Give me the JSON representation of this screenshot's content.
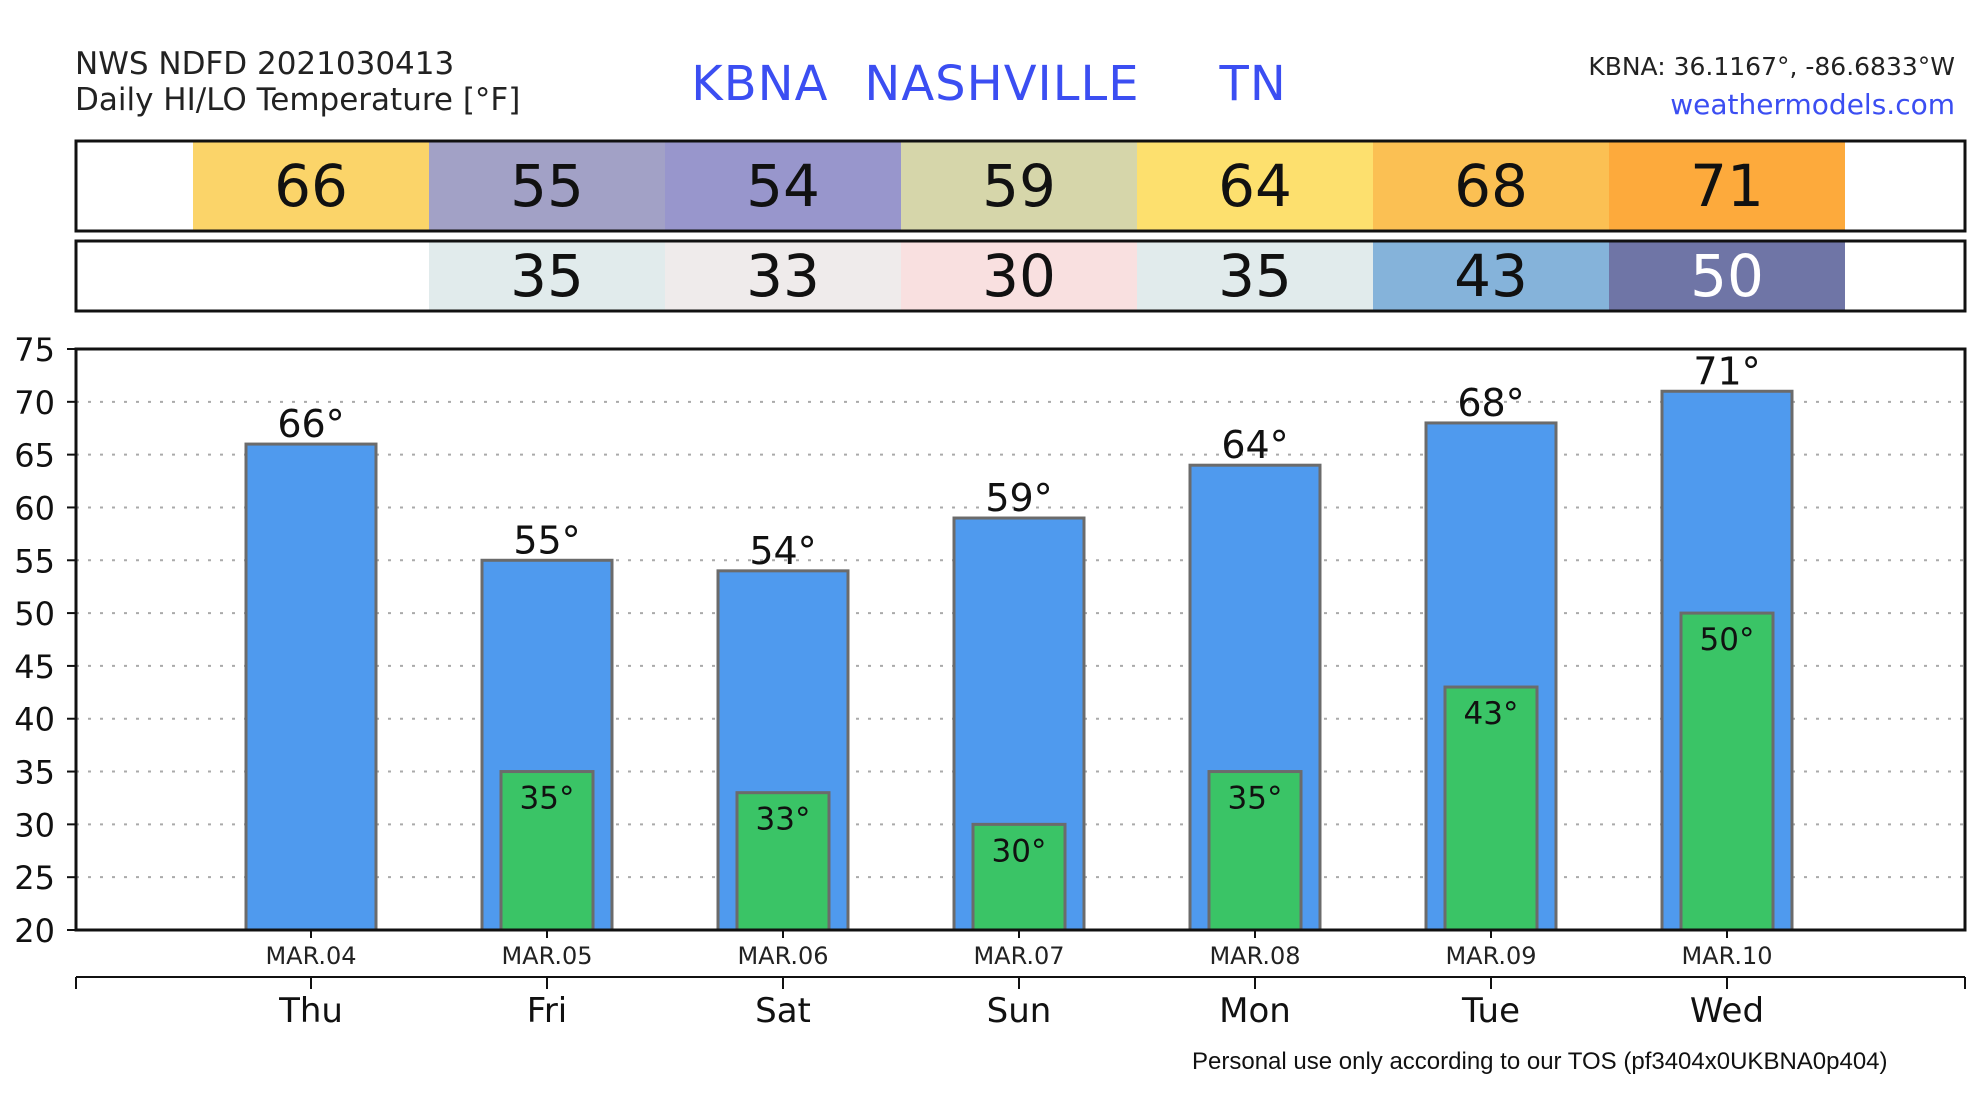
{
  "header": {
    "model_line": "NWS NDFD 2021030413",
    "product_line": "Daily HI/LO Temperature [°F]",
    "station_id": "KBNA",
    "city": "NASHVILLE",
    "state": "TN",
    "coords": "KBNA: 36.1167°, -86.6833°W",
    "site": "weathermodels.com"
  },
  "footer": {
    "tos": "Personal use only according to our TOS (pf3404x0UKBNA0p404)"
  },
  "colors": {
    "hi_bar": "#4f9aee",
    "lo_bar": "#3ac466",
    "bar_edge": "#6b6b6b",
    "title_blue": "#3b4ef2"
  },
  "strips": {
    "hi": [
      {
        "text": "66",
        "color": "#fbd469"
      },
      {
        "text": "55",
        "color": "#a2a1c6"
      },
      {
        "text": "54",
        "color": "#9896cc"
      },
      {
        "text": "59",
        "color": "#d6d6aa"
      },
      {
        "text": "64",
        "color": "#fde06e"
      },
      {
        "text": "68",
        "color": "#fbc053"
      },
      {
        "text": "71",
        "color": "#fdaa3c"
      }
    ],
    "lo": [
      {
        "text": "",
        "color": "#ffffff"
      },
      {
        "text": "35",
        "color": "#e1ebec"
      },
      {
        "text": "33",
        "color": "#efebeb"
      },
      {
        "text": "30",
        "color": "#f9e0e0"
      },
      {
        "text": "35",
        "color": "#e1ebec"
      },
      {
        "text": "43",
        "color": "#85b3da"
      },
      {
        "text": "50",
        "color": "#6f75a6",
        "text_color": "#ffffff"
      }
    ]
  },
  "chart_data": {
    "type": "bar",
    "categories": [
      "Thu",
      "Fri",
      "Sat",
      "Sun",
      "Mon",
      "Tue",
      "Wed"
    ],
    "dates": [
      "MAR.04",
      "MAR.05",
      "MAR.06",
      "MAR.07",
      "MAR.08",
      "MAR.09",
      "MAR.10"
    ],
    "series": [
      {
        "values": [
          66,
          55,
          54,
          59,
          64,
          68,
          71
        ],
        "labels": [
          "66°",
          "55°",
          "54°",
          "59°",
          "64°",
          "68°",
          "71°"
        ]
      },
      {
        "values": [
          null,
          35,
          33,
          30,
          35,
          43,
          50
        ],
        "labels": [
          "",
          "35°",
          "33°",
          "30°",
          "35°",
          "43°",
          "50°"
        ]
      }
    ],
    "ylim": [
      20,
      75
    ],
    "yticks": [
      20,
      25,
      30,
      35,
      40,
      45,
      50,
      55,
      60,
      65,
      70,
      75
    ],
    "grid": true
  }
}
